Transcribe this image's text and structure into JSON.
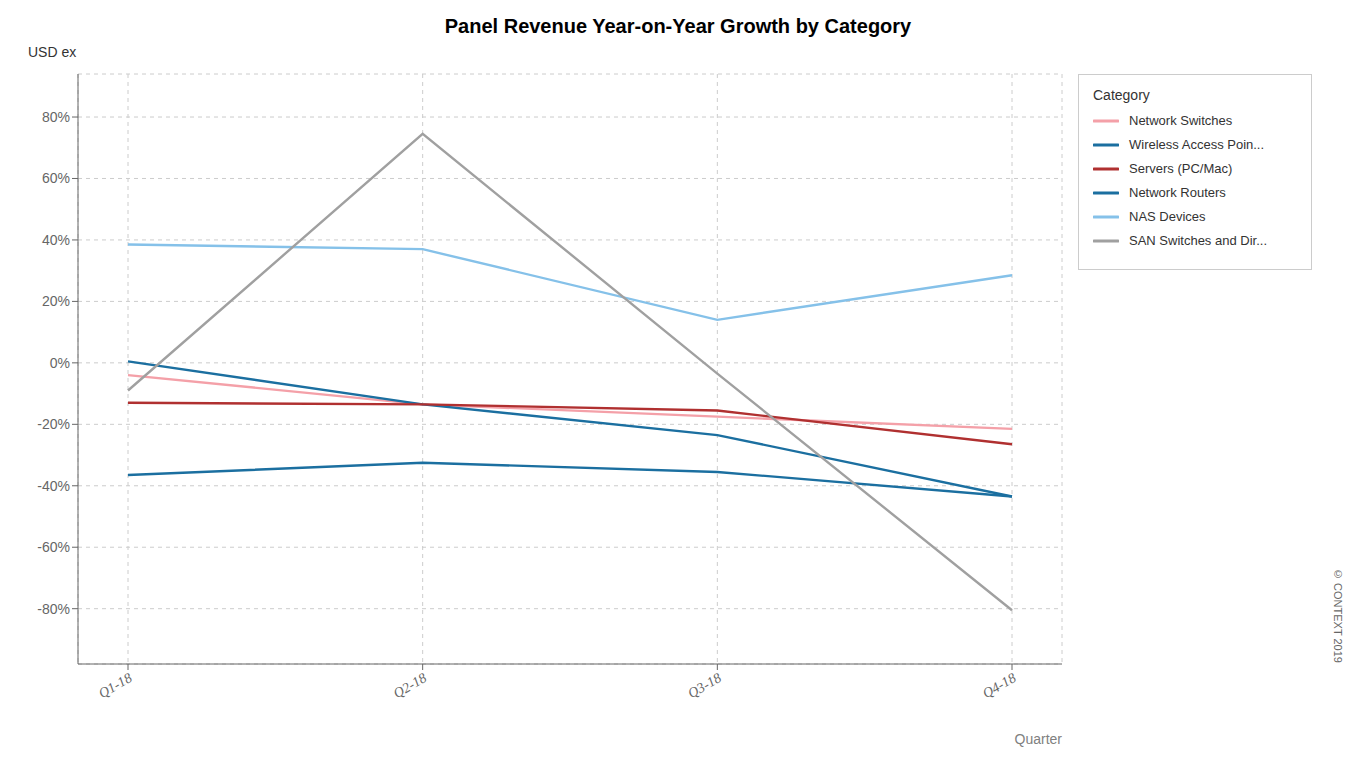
{
  "chart_data": {
    "type": "line",
    "title": "Panel Revenue Year-on-Year Growth by Category",
    "ylabel": "USD ex",
    "xlabel": "Quarter",
    "legend_title": "Category",
    "annotations": [
      "© CONTEXT 2019"
    ],
    "categories": [
      "Q1-18",
      "Q2-18",
      "Q3-18",
      "Q4-18"
    ],
    "series": [
      {
        "name": "Network Switches",
        "color": "#F4A0A8",
        "values": [
          -0.04,
          -0.135,
          -0.175,
          -0.215
        ]
      },
      {
        "name": "Wireless Access Poin...",
        "color": "#1B6FA0",
        "values": [
          0.005,
          -0.135,
          -0.235,
          -0.435
        ]
      },
      {
        "name": "Servers (PC/Mac)",
        "color": "#B03030",
        "values": [
          -0.13,
          -0.135,
          -0.155,
          -0.265
        ]
      },
      {
        "name": "Network Routers",
        "color": "#1B6FA0",
        "values": [
          -0.365,
          -0.325,
          -0.355,
          -0.435
        ]
      },
      {
        "name": "NAS Devices",
        "color": "#85C1E9",
        "values": [
          0.385,
          0.37,
          0.14,
          0.285
        ]
      },
      {
        "name": "SAN Switches and Dir...",
        "color": "#A0A0A0",
        "values": [
          -0.09,
          0.745,
          -0.035,
          -0.805
        ]
      }
    ],
    "ylim": [
      -0.98,
      0.94
    ],
    "yticks": [
      {
        "value": -0.8,
        "label": "-80%"
      },
      {
        "value": -0.6,
        "label": "-60%"
      },
      {
        "value": -0.4,
        "label": "-40%"
      },
      {
        "value": -0.2,
        "label": "-20%"
      },
      {
        "value": 0.0,
        "label": "0%"
      },
      {
        "value": 0.2,
        "label": "20%"
      },
      {
        "value": 0.4,
        "label": "40%"
      },
      {
        "value": 0.6,
        "label": "60%"
      },
      {
        "value": 0.8,
        "label": "80%"
      }
    ],
    "grid": true,
    "legend": "right"
  }
}
